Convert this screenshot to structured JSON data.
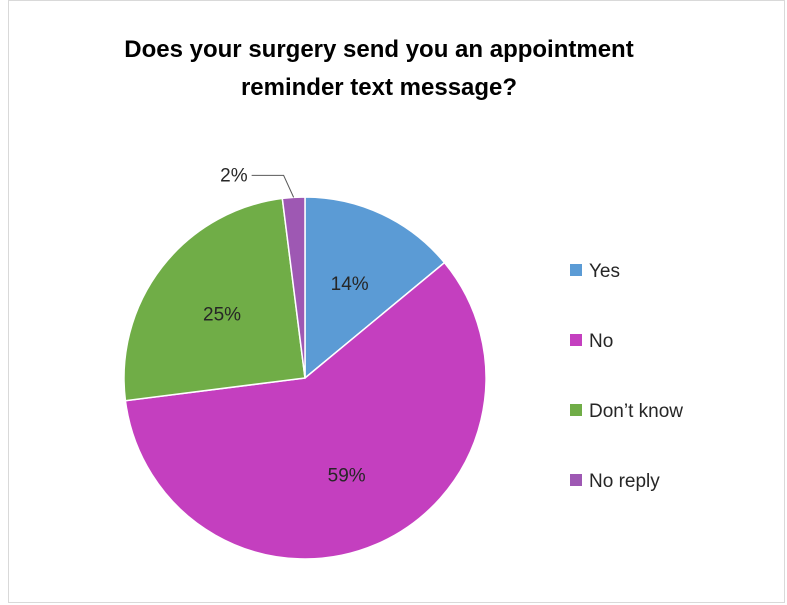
{
  "chart_data": {
    "type": "pie",
    "title": "Does your surgery send you an appointment reminder text message?",
    "categories": [
      "Yes",
      "No",
      "Don’t know",
      "No reply"
    ],
    "values": [
      14,
      59,
      25,
      2
    ],
    "labels": [
      "14%",
      "59%",
      "25%",
      "2%"
    ],
    "colors": [
      "#5b9bd5",
      "#c43fbf",
      "#70ad47",
      "#9e58b3"
    ],
    "legend_position": "right"
  }
}
